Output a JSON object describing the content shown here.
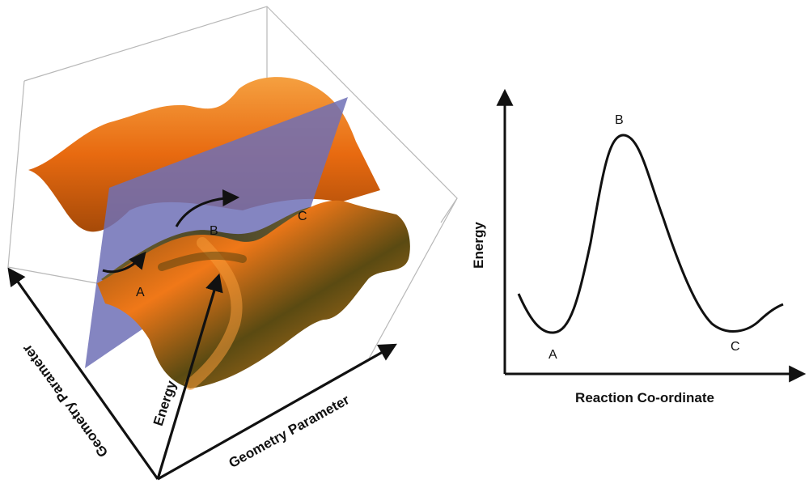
{
  "left_panel": {
    "axis_energy": "Energy",
    "axis_geometry_1": "Geometry Parameter",
    "axis_geometry_2": "Geometry Parameter",
    "points": [
      "A",
      "B",
      "C"
    ]
  },
  "right_panel": {
    "y_label": "Energy",
    "x_label": "Reaction Co-ordinate",
    "points": [
      "A",
      "B",
      "C"
    ]
  },
  "colors": {
    "surface_orange": "#f07818",
    "surface_dark": "#4a3a10",
    "plane": "#7373b8",
    "axis": "#111111",
    "box": "#b0b0b0"
  }
}
